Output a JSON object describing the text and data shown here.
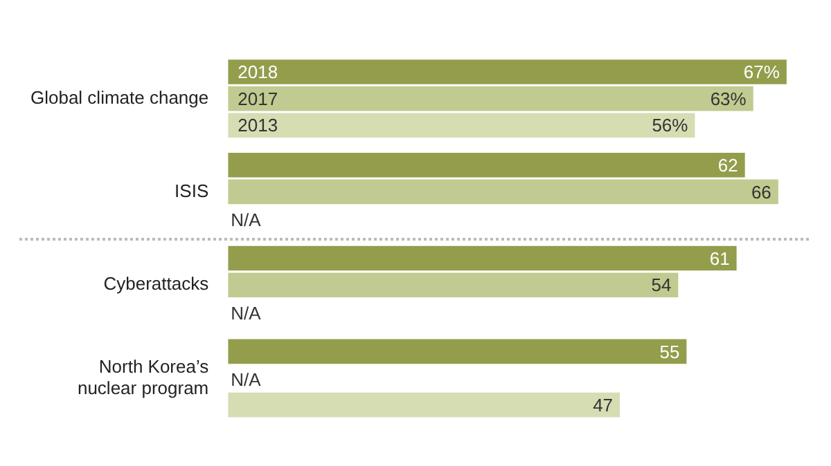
{
  "chart_data": {
    "type": "bar",
    "orientation": "horizontal",
    "categories": [
      "Global climate change",
      "ISIS",
      "Cyberattacks",
      "North Korea’s nuclear program"
    ],
    "series": [
      {
        "name": "2018",
        "color": "#939d4b",
        "values": [
          67,
          62,
          61,
          55
        ],
        "value_labels": [
          "67%",
          "62",
          "61",
          "55"
        ]
      },
      {
        "name": "2017",
        "color": "#c1ca90",
        "values": [
          63,
          66,
          54,
          null
        ],
        "value_labels": [
          "63%",
          "66",
          "54",
          "N/A"
        ]
      },
      {
        "name": "2013",
        "color": "#d6ddb3",
        "values": [
          56,
          null,
          null,
          47
        ],
        "value_labels": [
          "56%",
          "N/A",
          "N/A",
          "47"
        ]
      }
    ]
  }
}
